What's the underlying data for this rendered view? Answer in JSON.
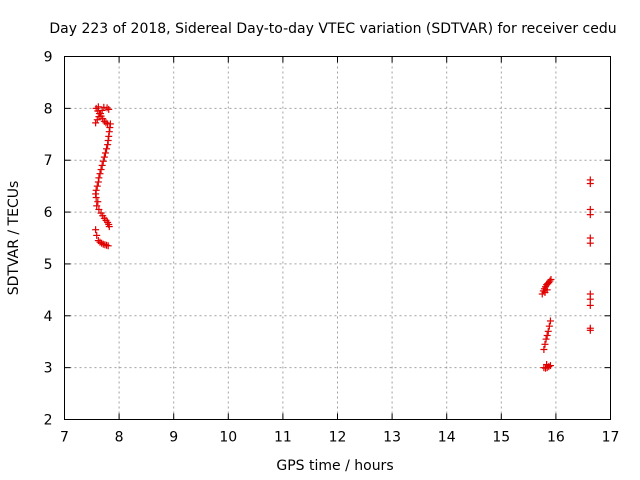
{
  "chart_data": {
    "type": "scatter",
    "title": "Day 223 of 2018, Sidereal Day-to-day VTEC variation (SDTVAR) for receiver cedu",
    "xlabel": "GPS time / hours",
    "ylabel": "SDTVAR / TECUs",
    "xlim": [
      7,
      17
    ],
    "ylim": [
      2,
      9
    ],
    "xticks": [
      "7",
      "8",
      "9",
      "10",
      "11",
      "12",
      "13",
      "14",
      "15",
      "16",
      "17"
    ],
    "yticks": [
      "2",
      "3",
      "4",
      "5",
      "6",
      "7",
      "8",
      "9"
    ],
    "grid": true,
    "marker": "plus",
    "color": "#e00000",
    "series": [
      {
        "points": [
          [
            7.57,
            5.66
          ],
          [
            7.59,
            5.55
          ],
          [
            7.62,
            5.45
          ],
          [
            7.65,
            5.42
          ],
          [
            7.68,
            5.4
          ],
          [
            7.71,
            5.38
          ],
          [
            7.74,
            5.37
          ],
          [
            7.77,
            5.36
          ],
          [
            7.8,
            5.35
          ],
          [
            7.59,
            6.12
          ],
          [
            7.61,
            6.2
          ],
          [
            7.58,
            6.28
          ],
          [
            7.57,
            6.35
          ],
          [
            7.58,
            6.42
          ],
          [
            7.6,
            6.5
          ],
          [
            7.62,
            6.58
          ],
          [
            7.63,
            6.66
          ],
          [
            7.65,
            6.74
          ],
          [
            7.67,
            6.82
          ],
          [
            7.69,
            6.9
          ],
          [
            7.71,
            6.98
          ],
          [
            7.73,
            7.06
          ],
          [
            7.75,
            7.14
          ],
          [
            7.77,
            7.22
          ],
          [
            7.79,
            7.3
          ],
          [
            7.8,
            7.38
          ],
          [
            7.81,
            7.46
          ],
          [
            7.82,
            7.55
          ],
          [
            7.83,
            7.63
          ],
          [
            7.84,
            7.7
          ],
          [
            7.63,
            6.05
          ],
          [
            7.67,
            5.98
          ],
          [
            7.7,
            5.93
          ],
          [
            7.73,
            5.88
          ],
          [
            7.76,
            5.84
          ],
          [
            7.79,
            5.8
          ],
          [
            7.81,
            5.76
          ],
          [
            7.82,
            5.72
          ],
          [
            7.57,
            7.72
          ],
          [
            7.6,
            7.78
          ],
          [
            7.63,
            7.84
          ],
          [
            7.66,
            7.9
          ],
          [
            7.69,
            7.96
          ],
          [
            7.72,
            8.02
          ],
          [
            7.58,
            8.0
          ],
          [
            7.61,
            7.95
          ],
          [
            7.64,
            7.9
          ],
          [
            7.67,
            7.85
          ],
          [
            7.7,
            7.8
          ],
          [
            7.73,
            7.75
          ],
          [
            7.76,
            7.72
          ],
          [
            7.79,
            7.7
          ],
          [
            7.62,
            8.03
          ],
          [
            7.78,
            8.01
          ],
          [
            7.81,
            7.98
          ],
          [
            15.78,
            3.35
          ],
          [
            15.8,
            3.45
          ],
          [
            15.82,
            3.55
          ],
          [
            15.84,
            3.62
          ],
          [
            15.86,
            3.7
          ],
          [
            15.88,
            3.8
          ],
          [
            15.9,
            3.9
          ],
          [
            15.78,
            3.0
          ],
          [
            15.81,
            2.99
          ],
          [
            15.84,
            3.0
          ],
          [
            15.87,
            3.02
          ],
          [
            15.9,
            3.04
          ],
          [
            15.83,
            3.06
          ],
          [
            15.75,
            4.42
          ],
          [
            15.77,
            4.48
          ],
          [
            15.79,
            4.52
          ],
          [
            15.81,
            4.56
          ],
          [
            15.83,
            4.6
          ],
          [
            15.85,
            4.62
          ],
          [
            15.87,
            4.64
          ],
          [
            15.89,
            4.67
          ],
          [
            15.91,
            4.7
          ],
          [
            15.8,
            4.45
          ],
          [
            15.84,
            4.5
          ],
          [
            16.63,
            6.55
          ],
          [
            16.63,
            6.62
          ],
          [
            16.63,
            5.95
          ],
          [
            16.63,
            6.05
          ],
          [
            16.63,
            5.4
          ],
          [
            16.63,
            5.5
          ],
          [
            16.63,
            4.2
          ],
          [
            16.63,
            4.32
          ],
          [
            16.63,
            4.42
          ],
          [
            16.63,
            3.72
          ],
          [
            16.63,
            3.76
          ]
        ]
      }
    ]
  }
}
